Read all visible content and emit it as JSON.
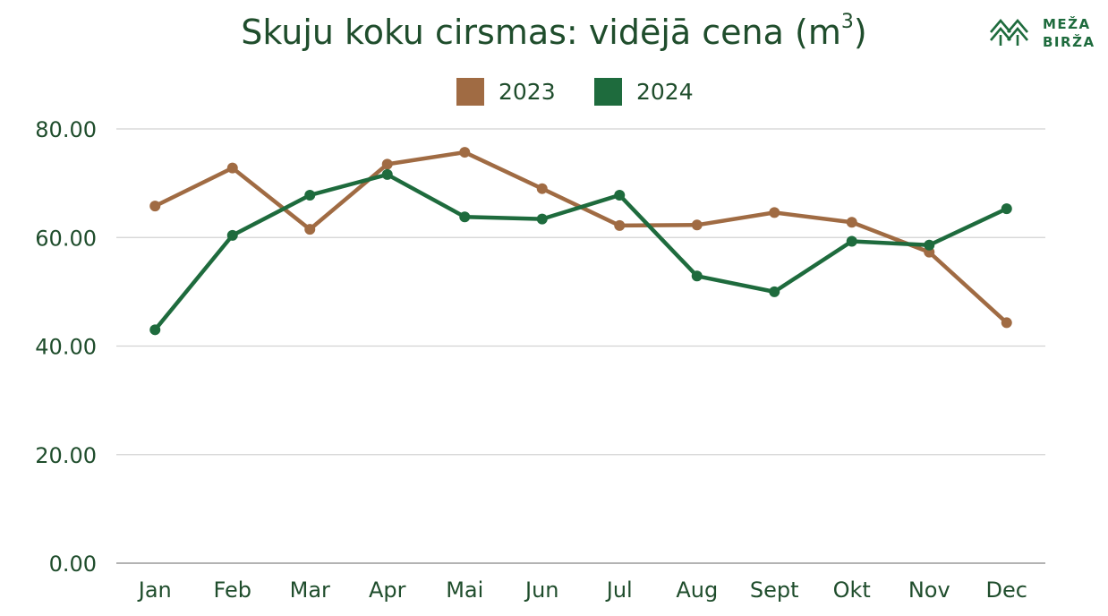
{
  "chart_data": {
    "type": "line",
    "title": "Skuju koku cirsmas:  vidējā cena (m",
    "title_superscript": "3",
    "title_suffix": ")",
    "categories": [
      "Jan",
      "Feb",
      "Mar",
      "Apr",
      "Mai",
      "Jun",
      "Jul",
      "Aug",
      "Sept",
      "Okt",
      "Nov",
      "Dec"
    ],
    "series": [
      {
        "name": "2023",
        "color": "#a06b43",
        "values": [
          65.8,
          72.8,
          61.5,
          73.5,
          75.7,
          69.0,
          62.2,
          62.3,
          64.6,
          62.8,
          57.3,
          44.3
        ]
      },
      {
        "name": "2024",
        "color": "#1e6b3d",
        "values": [
          43.0,
          60.4,
          67.8,
          71.6,
          63.8,
          63.4,
          67.8,
          52.9,
          50.0,
          59.3,
          58.6,
          65.3
        ]
      }
    ],
    "ylim": [
      0,
      80
    ],
    "yticks": [
      "0.00",
      "20.00",
      "40.00",
      "60.00",
      "80.00"
    ],
    "xlabel": "",
    "ylabel": "",
    "grid": true,
    "legend_position": "top-center"
  },
  "brand": {
    "line1": "MEŽA",
    "line2": "BIRŽA",
    "icon": "mountains-trees-icon",
    "color": "#1e6b3d"
  }
}
